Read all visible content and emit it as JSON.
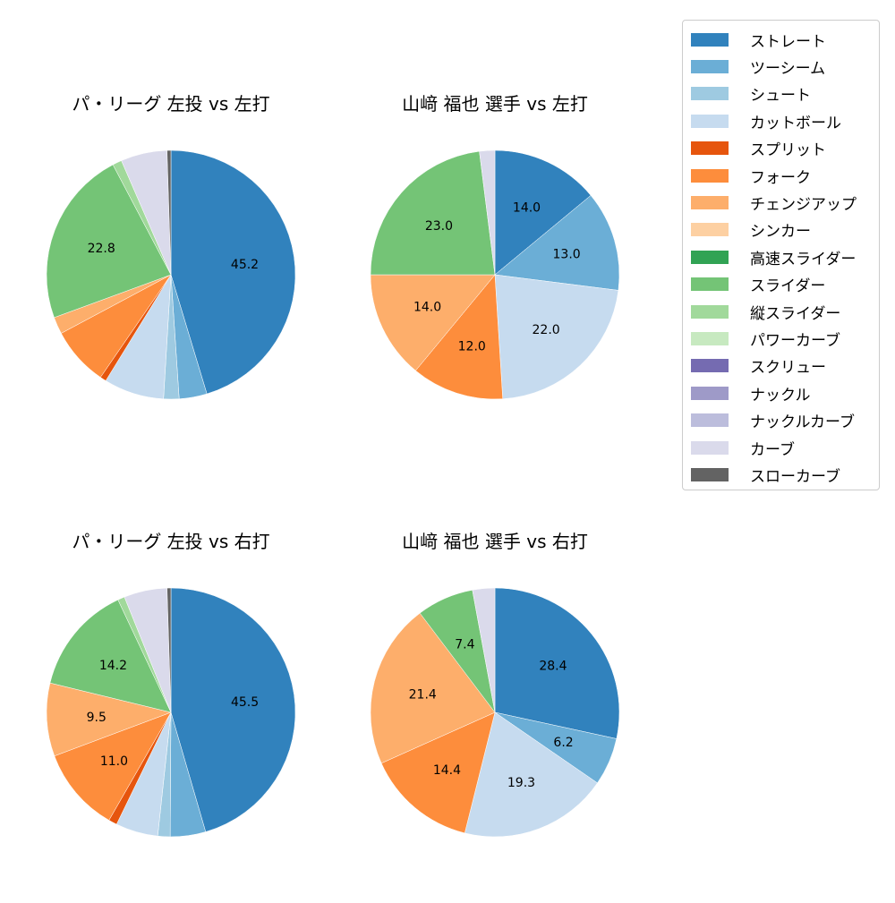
{
  "chart_data": [
    {
      "type": "pie",
      "title": "パ・リーグ 左投 vs 左打",
      "start_angle": 90,
      "direction": "clockwise",
      "categories": [
        "ストレート",
        "ツーシーム",
        "シュート",
        "カットボール",
        "スプリット",
        "フォーク",
        "チェンジアップ",
        "シンカー",
        "高速スライダー",
        "スライダー",
        "縦スライダー",
        "パワーカーブ",
        "スクリュー",
        "ナックル",
        "ナックルカーブ",
        "カーブ",
        "スローカーブ"
      ],
      "values": [
        45.2,
        3.6,
        2.0,
        7.8,
        0.8,
        7.6,
        2.2,
        0,
        0,
        22.8,
        1.2,
        0,
        0,
        0,
        0,
        6.0,
        0.5
      ],
      "labels_shown": [
        "45.2",
        "22.8"
      ]
    },
    {
      "type": "pie",
      "title": "山﨑 福也 選手 vs 左打",
      "start_angle": 90,
      "direction": "clockwise",
      "categories": [
        "ストレート",
        "ツーシーム",
        "シュート",
        "カットボール",
        "スプリット",
        "フォーク",
        "チェンジアップ",
        "シンカー",
        "高速スライダー",
        "スライダー",
        "縦スライダー",
        "パワーカーブ",
        "スクリュー",
        "ナックル",
        "ナックルカーブ",
        "カーブ",
        "スローカーブ"
      ],
      "values": [
        14.0,
        13.0,
        0,
        22.0,
        0,
        12.0,
        14.0,
        0,
        0,
        23.0,
        0,
        0,
        0,
        0,
        0,
        2.0,
        0
      ],
      "labels_shown": [
        "14.0",
        "13.0",
        "22.0",
        "12.0",
        "14.0",
        "23.0"
      ]
    },
    {
      "type": "pie",
      "title": "パ・リーグ 左投 vs 右打",
      "start_angle": 90,
      "direction": "clockwise",
      "categories": [
        "ストレート",
        "ツーシーム",
        "シュート",
        "カットボール",
        "スプリット",
        "フォーク",
        "チェンジアップ",
        "シンカー",
        "高速スライダー",
        "スライダー",
        "縦スライダー",
        "パワーカーブ",
        "スクリュー",
        "ナックル",
        "ナックルカーブ",
        "カーブ",
        "スローカーブ"
      ],
      "values": [
        45.5,
        4.6,
        1.6,
        5.5,
        1.1,
        11.0,
        9.5,
        0,
        0,
        14.2,
        0.9,
        0,
        0,
        0,
        0,
        5.6,
        0.5
      ],
      "labels_shown": [
        "45.5",
        "11.0",
        "9.5",
        "14.2"
      ]
    },
    {
      "type": "pie",
      "title": "山﨑 福也 選手 vs 右打",
      "start_angle": 90,
      "direction": "clockwise",
      "categories": [
        "ストレート",
        "ツーシーム",
        "シュート",
        "カットボール",
        "スプリット",
        "フォーク",
        "チェンジアップ",
        "シンカー",
        "高速スライダー",
        "スライダー",
        "縦スライダー",
        "パワーカーブ",
        "スクリュー",
        "ナックル",
        "ナックルカーブ",
        "カーブ",
        "スローカーブ"
      ],
      "values": [
        28.4,
        6.2,
        0,
        19.3,
        0,
        14.4,
        21.4,
        0,
        0,
        7.4,
        0,
        0,
        0,
        0,
        0,
        2.9,
        0
      ],
      "labels_shown": [
        "28.4",
        "6.2",
        "19.3",
        "14.4",
        "21.4",
        "7.4"
      ]
    }
  ],
  "panels": [
    {
      "title": "パ・リーグ 左投 vs 左打"
    },
    {
      "title": "山﨑 福也 選手 vs 左打"
    },
    {
      "title": "パ・リーグ 左投 vs 右打"
    },
    {
      "title": "山﨑 福也 選手 vs 右打"
    }
  ],
  "legend": {
    "items": [
      {
        "label": "ストレート",
        "color": "#3182bd"
      },
      {
        "label": "ツーシーム",
        "color": "#6baed6"
      },
      {
        "label": "シュート",
        "color": "#9ecae1"
      },
      {
        "label": "カットボール",
        "color": "#c6dbef"
      },
      {
        "label": "スプリット",
        "color": "#e6550d"
      },
      {
        "label": "フォーク",
        "color": "#fd8d3c"
      },
      {
        "label": "チェンジアップ",
        "color": "#fdae6b"
      },
      {
        "label": "シンカー",
        "color": "#fdd0a2"
      },
      {
        "label": "高速スライダー",
        "color": "#31a354"
      },
      {
        "label": "スライダー",
        "color": "#74c476"
      },
      {
        "label": "縦スライダー",
        "color": "#a1d99b"
      },
      {
        "label": "パワーカーブ",
        "color": "#c7e9c0"
      },
      {
        "label": "スクリュー",
        "color": "#756bb1"
      },
      {
        "label": "ナックル",
        "color": "#9e9ac8"
      },
      {
        "label": "ナックルカーブ",
        "color": "#bcbddc"
      },
      {
        "label": "カーブ",
        "color": "#dadaeb"
      },
      {
        "label": "スローカーブ",
        "color": "#636363"
      }
    ]
  }
}
